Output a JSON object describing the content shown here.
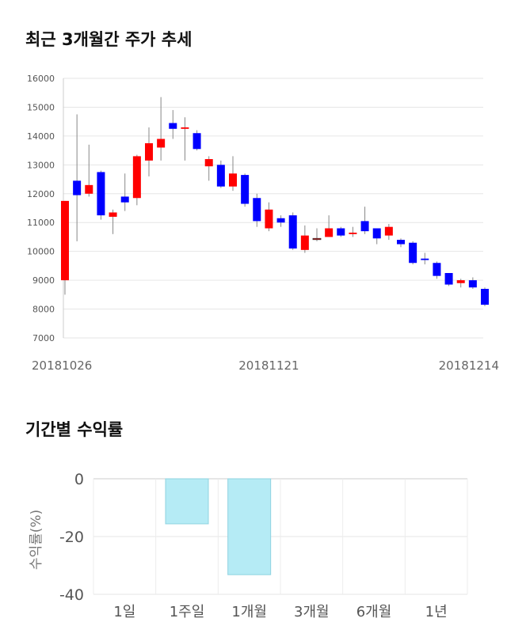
{
  "titles": {
    "price": "최근 3개월간 주가 추세",
    "returns": "기간별 수익률"
  },
  "chart_data": [
    {
      "type": "candlestick",
      "ylim": [
        7000,
        16000
      ],
      "y_ticks": [
        "16000",
        "15000",
        "14000",
        "13000",
        "12000",
        "11000",
        "10000",
        "9000",
        "8000",
        "7000"
      ],
      "x_tick_labels": [
        {
          "label": "20181026",
          "index": 0
        },
        {
          "label": "20181121",
          "index": 17
        },
        {
          "label": "20181214",
          "index": 34
        }
      ],
      "grid": true,
      "colors": {
        "up": "#ff0000",
        "down": "#0000ff",
        "wick": "#888888"
      },
      "candles": [
        {
          "o": 9000,
          "c": 11750,
          "h": 11750,
          "l": 8500
        },
        {
          "o": 12450,
          "c": 11950,
          "h": 14750,
          "l": 10350
        },
        {
          "o": 12000,
          "c": 12300,
          "h": 13700,
          "l": 11900
        },
        {
          "o": 12750,
          "c": 11250,
          "h": 12800,
          "l": 11100
        },
        {
          "o": 11200,
          "c": 11350,
          "h": 11450,
          "l": 10600
        },
        {
          "o": 11900,
          "c": 11700,
          "h": 12700,
          "l": 11400
        },
        {
          "o": 11850,
          "c": 13300,
          "h": 13350,
          "l": 11600
        },
        {
          "o": 13150,
          "c": 13750,
          "h": 14300,
          "l": 12600
        },
        {
          "o": 13600,
          "c": 13900,
          "h": 15350,
          "l": 13150
        },
        {
          "o": 14450,
          "c": 14250,
          "h": 14900,
          "l": 13900
        },
        {
          "o": 14250,
          "c": 14300,
          "h": 14650,
          "l": 13150
        },
        {
          "o": 14100,
          "c": 13550,
          "h": 14200,
          "l": 13500
        },
        {
          "o": 12950,
          "c": 13200,
          "h": 13300,
          "l": 12450
        },
        {
          "o": 13000,
          "c": 12250,
          "h": 13150,
          "l": 12200
        },
        {
          "o": 12250,
          "c": 12700,
          "h": 13300,
          "l": 12100
        },
        {
          "o": 12650,
          "c": 11650,
          "h": 12700,
          "l": 11550
        },
        {
          "o": 11850,
          "c": 11050,
          "h": 12000,
          "l": 10850
        },
        {
          "o": 10800,
          "c": 11450,
          "h": 11700,
          "l": 10700
        },
        {
          "o": 11150,
          "c": 11000,
          "h": 11250,
          "l": 10850
        },
        {
          "o": 11250,
          "c": 10100,
          "h": 11350,
          "l": 10050
        },
        {
          "o": 10050,
          "c": 10550,
          "h": 10900,
          "l": 9950
        },
        {
          "o": 10450,
          "c": 10450,
          "h": 10800,
          "l": 10350
        },
        {
          "o": 10500,
          "c": 10800,
          "h": 11250,
          "l": 10500
        },
        {
          "o": 10800,
          "c": 10550,
          "h": 10850,
          "l": 10500
        },
        {
          "o": 10600,
          "c": 10650,
          "h": 10850,
          "l": 10500
        },
        {
          "o": 11050,
          "c": 10700,
          "h": 11550,
          "l": 10600
        },
        {
          "o": 10800,
          "c": 10450,
          "h": 10800,
          "l": 10250
        },
        {
          "o": 10550,
          "c": 10850,
          "h": 10950,
          "l": 10400
        },
        {
          "o": 10400,
          "c": 10250,
          "h": 10450,
          "l": 10150
        },
        {
          "o": 10300,
          "c": 9600,
          "h": 10350,
          "l": 9550
        },
        {
          "o": 9750,
          "c": 9700,
          "h": 9950,
          "l": 9550
        },
        {
          "o": 9600,
          "c": 9150,
          "h": 9650,
          "l": 9050
        },
        {
          "o": 9250,
          "c": 8850,
          "h": 9250,
          "l": 8800
        },
        {
          "o": 8900,
          "c": 9000,
          "h": 9050,
          "l": 8750
        },
        {
          "o": 9000,
          "c": 8750,
          "h": 9100,
          "l": 8700
        },
        {
          "o": 8700,
          "c": 8150,
          "h": 8750,
          "l": 8100
        }
      ]
    },
    {
      "type": "bar",
      "ylabel": "수익률(%)",
      "ylim": [
        -40,
        0
      ],
      "y_ticks": [
        "0",
        "-20",
        "-40"
      ],
      "categories": [
        "1일",
        "1주일",
        "1개월",
        "3개월",
        "6개월",
        "1년"
      ],
      "values": [
        0,
        -15.6,
        -33.2,
        0,
        0,
        0
      ],
      "colors": {
        "fill": "#b5ebf5",
        "stroke": "#8fd3e0"
      },
      "grid": true
    }
  ]
}
